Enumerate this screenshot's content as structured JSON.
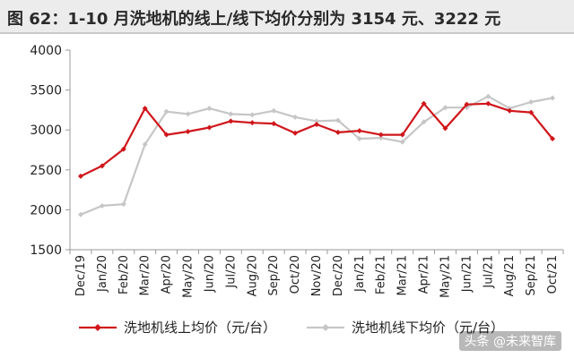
{
  "title": "图 62：1-10 月洗地机的线上/线下均价分别为 3154 元、3222 元",
  "watermark": "头条 @未来智库",
  "chart_data": {
    "type": "line",
    "categories": [
      "Dec/19",
      "Jan/20",
      "Feb/20",
      "Mar/20",
      "Apr/20",
      "May/20",
      "Jun/20",
      "Jul/20",
      "Aug/20",
      "Sep/20",
      "Oct/20",
      "Nov/20",
      "Dec/20",
      "Jan/21",
      "Feb/21",
      "Mar/21",
      "Apr/21",
      "May/21",
      "Jun/21",
      "Jul/21",
      "Aug/21",
      "Sep/21",
      "Oct/21"
    ],
    "ylim": [
      1500,
      4000
    ],
    "yticks": [
      "1500",
      "2000",
      "2500",
      "3000",
      "3500",
      "4000"
    ],
    "series": [
      {
        "name": "洗地机线上均价（元/台）",
        "color": "#d0161b",
        "marker": "diamond",
        "values": [
          2420,
          2550,
          2760,
          3270,
          2940,
          2980,
          3030,
          3110,
          3090,
          3080,
          2960,
          3070,
          2970,
          2990,
          2940,
          2940,
          3330,
          3020,
          3320,
          3330,
          3240,
          3220,
          2890
        ]
      },
      {
        "name": "洗地机线下均价（元/台）",
        "color": "#c6c6c6",
        "marker": "diamond",
        "values": [
          1940,
          2050,
          2070,
          2820,
          3230,
          3200,
          3270,
          3200,
          3190,
          3240,
          3160,
          3110,
          3120,
          2890,
          2900,
          2850,
          3100,
          3280,
          3280,
          3420,
          3270,
          3350,
          3400
        ]
      }
    ]
  }
}
